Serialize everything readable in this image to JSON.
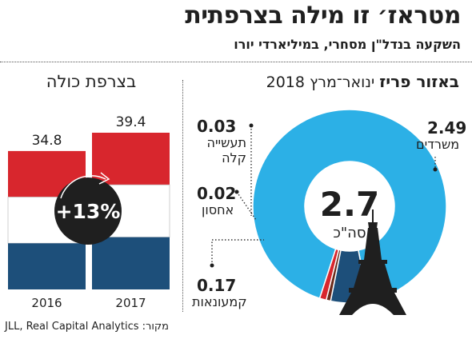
{
  "header": {
    "title": "מטראז׳ זו מילה בצרפתית",
    "subtitle": "השקעה בנדל\"ן מסחרי, במיליארדי יורו"
  },
  "source": "מקור: JLL, Real Capital Analytics",
  "colors": {
    "blue": "#2cb0e6",
    "dark_blue": "#1d4f7a",
    "red": "#d8262d",
    "brown": "#6b2a1a",
    "dark": "#1f1f1f"
  },
  "chart_data": [
    {
      "type": "bar",
      "title": "בצרפת כולה",
      "categories": [
        "2016",
        "2017"
      ],
      "values": [
        34.8,
        39.4
      ],
      "value_labels": [
        "34.8",
        "39.4"
      ],
      "change_label": "+13%",
      "style": "french-flag-colored bars"
    },
    {
      "type": "pie",
      "title_bold": "באזור פריז",
      "title_rest": "ינואר־מרץ 2018",
      "total_value": "2.7",
      "total_unit": "סה\"כ",
      "slices": [
        {
          "label": "משרדים",
          "value": 2.49,
          "value_label": "2.49",
          "color": "#2cb0e6"
        },
        {
          "label": "קמעונאות",
          "value": 0.17,
          "value_label": "0.17",
          "color": "#1d4f7a"
        },
        {
          "label": "אחסון",
          "value": 0.02,
          "value_label": "0.02",
          "color": "#6b2a1a"
        },
        {
          "label": "תעשייה קלה",
          "value": 0.03,
          "value_label": "0.03",
          "color": "#d8262d"
        }
      ],
      "style": "donut with Eiffel tower illustration"
    }
  ]
}
